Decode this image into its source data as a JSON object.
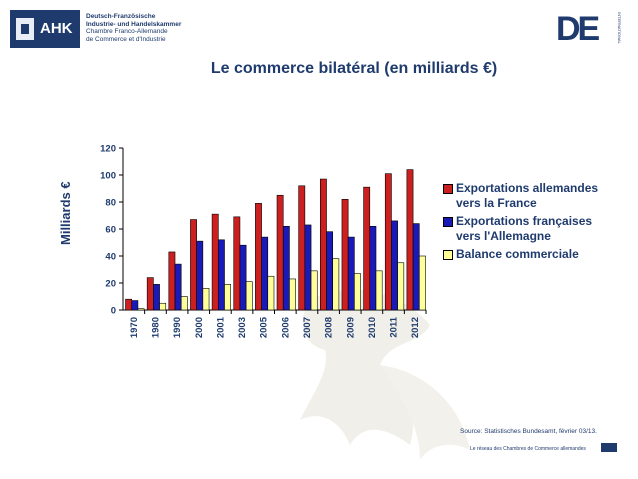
{
  "header": {
    "ahk_badge": "AHK",
    "ahk_lines": [
      "Deutsch-Französische",
      "Industrie- und Handelskammer",
      "Chambre Franco-Allemande",
      "de Commerce et d'Industrie"
    ],
    "de_letters": "DE",
    "de_side": "INTERNATIONAL"
  },
  "chart_data": {
    "type": "bar",
    "title": "Le commerce bilatéral (en milliards €)",
    "xlabel": "",
    "ylabel": "Milliards €",
    "ylim": [
      0,
      120
    ],
    "yticks": [
      0,
      20,
      40,
      60,
      80,
      100,
      120
    ],
    "grid": false,
    "legend_position": "right",
    "categories": [
      "1970",
      "1980",
      "1990",
      "2000",
      "2001",
      "2003",
      "2005",
      "2006",
      "2007",
      "2008",
      "2009",
      "2010",
      "2011",
      "2012"
    ],
    "series": [
      {
        "name": "Exportations allemandes vers la France",
        "color": "#cc1f1f",
        "values": [
          8,
          24,
          43,
          67,
          71,
          69,
          79,
          85,
          92,
          97,
          82,
          91,
          101,
          104
        ]
      },
      {
        "name": "Exportations françaises vers l'Allemagne",
        "color": "#1a1ab8",
        "values": [
          7,
          19,
          34,
          51,
          52,
          48,
          54,
          62,
          63,
          58,
          54,
          62,
          66,
          64
        ]
      },
      {
        "name": "Balance commerciale",
        "color": "#ffff99",
        "values": [
          1,
          5,
          10,
          16,
          19,
          21,
          25,
          23,
          29,
          38,
          27,
          29,
          35,
          40
        ]
      }
    ]
  },
  "footer": {
    "source": "Source: Statistisches Bundesamt, février 03/13.",
    "tagline": "Le réseau des Chambres de Commerce allemandes"
  }
}
